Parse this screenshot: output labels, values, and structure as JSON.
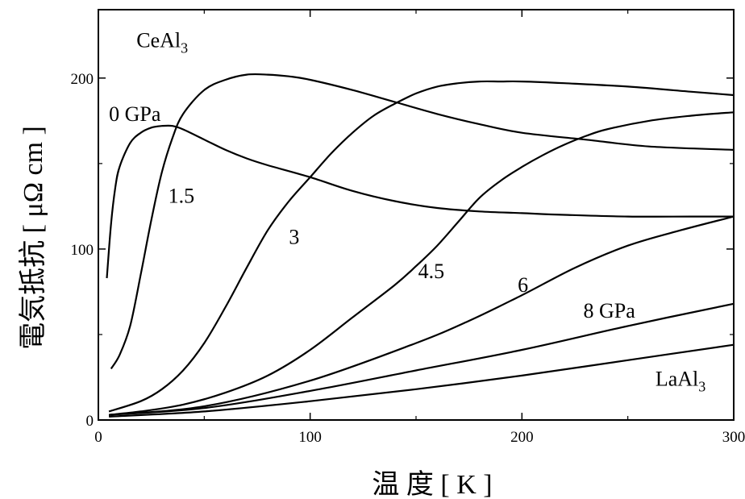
{
  "chart_data": {
    "type": "line",
    "title": "",
    "xlabel": "温 度 [ K ]",
    "ylabel": "電気抵抗 [ μΩ cm ]",
    "xlim": [
      0,
      300
    ],
    "ylim": [
      0,
      240
    ],
    "x_ticks": [
      0,
      100,
      200,
      300
    ],
    "y_ticks": [
      0,
      100,
      200
    ],
    "grid": false,
    "annotations": [
      {
        "text": "CeAl",
        "sub": "3",
        "x": 18,
        "y": 218
      },
      {
        "text": "0 GPa",
        "x": 5,
        "y": 175
      },
      {
        "text": "1.5",
        "x": 33,
        "y": 127
      },
      {
        "text": "3",
        "x": 90,
        "y": 103
      },
      {
        "text": "4.5",
        "x": 151,
        "y": 83
      },
      {
        "text": "6",
        "x": 198,
        "y": 75
      },
      {
        "text": "8 GPa",
        "x": 229,
        "y": 60
      },
      {
        "text": "LaAl",
        "sub": "3",
        "x": 263,
        "y": 20
      }
    ],
    "series": [
      {
        "x": [
          4,
          6,
          8,
          10,
          15,
          20,
          25,
          30,
          35,
          40,
          50,
          60,
          70,
          80,
          100,
          120,
          140,
          160,
          180,
          200,
          220,
          250,
          280,
          300
        ],
        "y": [
          83,
          115,
          136,
          148,
          162,
          168,
          171,
          172,
          172,
          170,
          164,
          158,
          153,
          149,
          142,
          134,
          128,
          124,
          122,
          121,
          120,
          119,
          119,
          119
        ]
      },
      {
        "x": [
          6,
          10,
          15,
          20,
          25,
          30,
          35,
          40,
          50,
          60,
          70,
          80,
          90,
          100,
          120,
          140,
          160,
          180,
          200,
          230,
          260,
          300
        ],
        "y": [
          30,
          38,
          55,
          85,
          117,
          145,
          165,
          179,
          193,
          199,
          202,
          202,
          201,
          199,
          193,
          186,
          179,
          173,
          168,
          164,
          160,
          158
        ]
      },
      {
        "x": [
          5,
          20,
          30,
          40,
          50,
          60,
          70,
          80,
          90,
          100,
          110,
          120,
          130,
          140,
          150,
          160,
          170,
          180,
          190,
          200,
          220,
          250,
          280,
          300
        ],
        "y": [
          5,
          11,
          18,
          29,
          45,
          66,
          89,
          111,
          128,
          142,
          156,
          168,
          178,
          185,
          191,
          195,
          197,
          198,
          198,
          198,
          197,
          195,
          192,
          190
        ]
      },
      {
        "x": [
          5,
          20,
          40,
          60,
          80,
          100,
          120,
          140,
          150,
          160,
          170,
          180,
          190,
          200,
          210,
          220,
          230,
          240,
          260,
          280,
          300
        ],
        "y": [
          3,
          5,
          9,
          16,
          26,
          41,
          60,
          79,
          90,
          102,
          116,
          130,
          140,
          148,
          155,
          161,
          166,
          170,
          175,
          178,
          180
        ]
      },
      {
        "x": [
          5,
          50,
          100,
          150,
          175,
          200,
          225,
          250,
          275,
          300
        ],
        "y": [
          3,
          8,
          23,
          45,
          58,
          73,
          89,
          102,
          111,
          119
        ]
      },
      {
        "x": [
          5,
          50,
          100,
          150,
          200,
          250,
          300
        ],
        "y": [
          3,
          7,
          17,
          29,
          41,
          55,
          68
        ]
      },
      {
        "x": [
          5,
          50,
          100,
          150,
          200,
          250,
          300
        ],
        "y": [
          2,
          5,
          11,
          18,
          26,
          35,
          44
        ]
      }
    ]
  }
}
